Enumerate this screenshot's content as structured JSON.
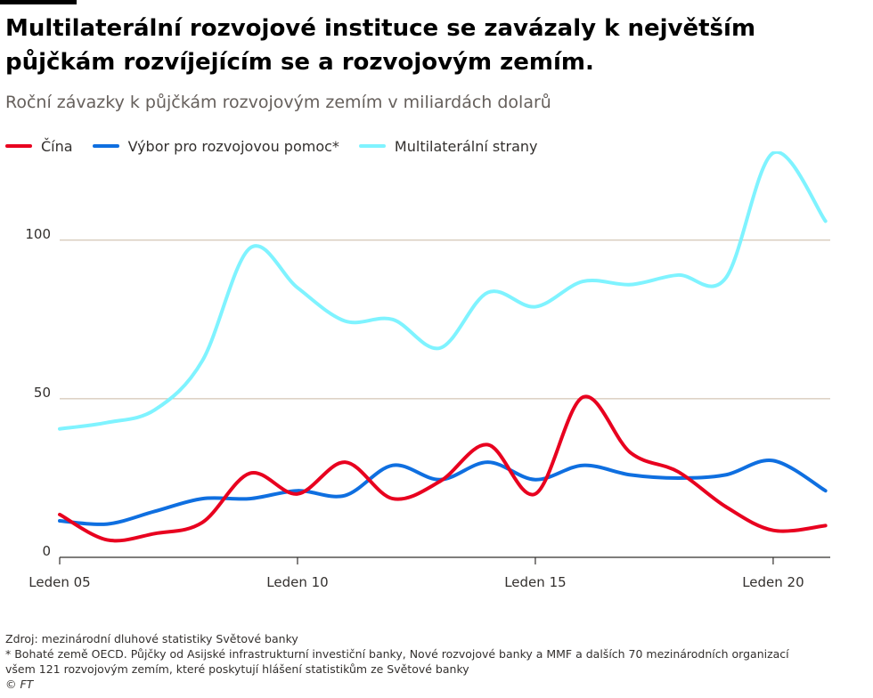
{
  "title_line1": "Multilaterální rozvojové instituce se zavázaly k největším",
  "title_line2": "půjčkám rozvíjejícím se a rozvojovým zemím.",
  "subtitle": "Roční závazky k půjčkám rozvojovým zemím v miliardách dolarů",
  "footer": {
    "source": "Zdroj: mezinárodní dluhové statistiky Světové banky",
    "note_line1": "* Bohaté země OECD. Půjčky od Asijské infrastrukturní investiční banky, Nové rozvojové banky a MMF a dalších 70 mezinárodních organizací",
    "note_line2": "všem 121 rozvojovým zemím, které poskytují hlášení statistikům ze Světové banky",
    "credit": "© FT"
  },
  "chart_data": {
    "type": "line",
    "x": [
      2005,
      2006,
      2007,
      2008,
      2009,
      2010,
      2011,
      2012,
      2013,
      2014,
      2015,
      2016,
      2017,
      2018,
      2019,
      2020,
      2021
    ],
    "xlim": [
      2005,
      2021.2
    ],
    "ylim": [
      0,
      128
    ],
    "y_ticks": [
      0,
      50,
      100
    ],
    "x_ticks": [
      {
        "value": 2005,
        "label": "Leden 05"
      },
      {
        "value": 2010,
        "label": "Leden 10"
      },
      {
        "value": 2015,
        "label": "Leden 15"
      },
      {
        "value": 2020,
        "label": "Leden 20"
      }
    ],
    "grid": true,
    "legend_position": "top-left",
    "series": [
      {
        "name": "Čína",
        "color": "#e8001f",
        "x": [
          2005,
          2006,
          2007,
          2008,
          2009,
          2010,
          2011,
          2012,
          2013,
          2014,
          2015,
          2016,
          2017,
          2018,
          2019,
          2020,
          2021.1
        ],
        "values": [
          13.5,
          5.5,
          7.5,
          11,
          26.5,
          20,
          30,
          18.5,
          24,
          35.5,
          20,
          50.5,
          33,
          27,
          16,
          8.5,
          10
        ]
      },
      {
        "name": "Výbor pro rozvojovou pomoc*",
        "color": "#0f6fe0",
        "x": [
          2005,
          2006,
          2007,
          2008,
          2009,
          2010,
          2011,
          2012,
          2013,
          2014,
          2015,
          2016,
          2017,
          2018,
          2019,
          2020,
          2021.1
        ],
        "values": [
          11.5,
          10.5,
          14.5,
          18.5,
          18.5,
          21,
          19.5,
          29,
          24.5,
          30,
          24.5,
          29,
          26,
          25,
          26,
          30.5,
          21
        ]
      },
      {
        "name": "Multilaterální strany",
        "color": "#7ff3ff",
        "x": [
          2005,
          2006,
          2007,
          2008,
          2009,
          2010,
          2011,
          2012,
          2013,
          2014,
          2015,
          2016,
          2017,
          2018,
          2019,
          2020,
          2021.1
        ],
        "values": [
          40.5,
          42.5,
          46.5,
          62,
          97.5,
          85,
          74.5,
          75,
          66,
          83.5,
          79,
          87,
          86,
          89,
          88,
          127.5,
          106
        ]
      }
    ]
  }
}
